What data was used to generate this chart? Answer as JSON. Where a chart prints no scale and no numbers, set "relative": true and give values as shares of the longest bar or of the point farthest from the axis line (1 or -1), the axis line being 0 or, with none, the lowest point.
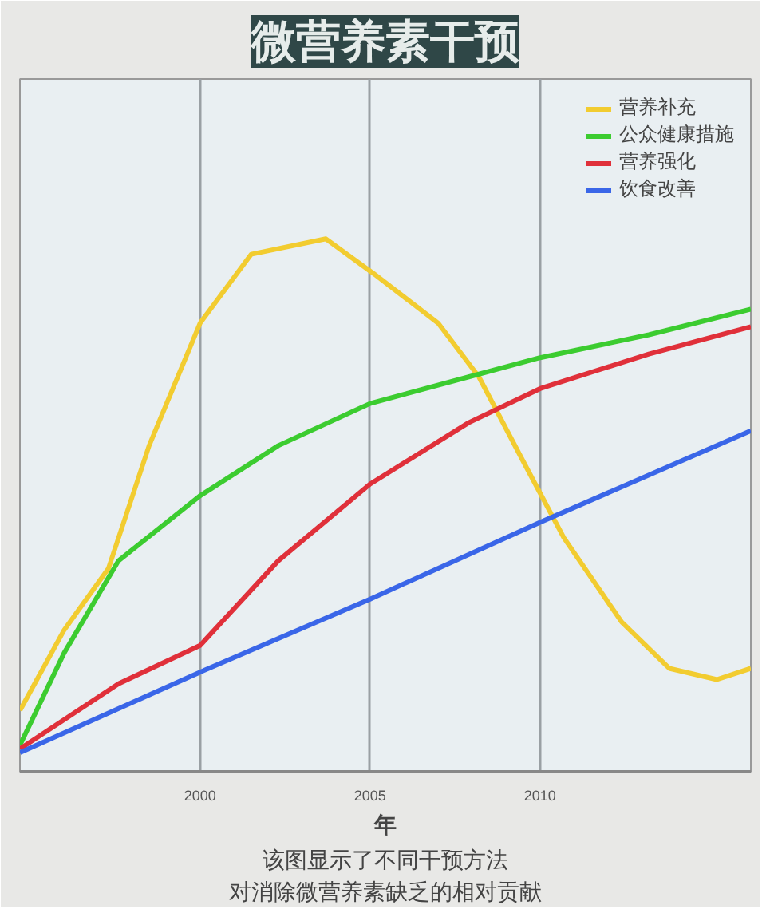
{
  "chart_data": {
    "type": "line",
    "title": "微营养素干预",
    "xlabel": "年",
    "annotations": [
      "该图显示了不同干预方法",
      "对消除微营养素缺乏的相对贡献"
    ],
    "relative": true,
    "xlim": [
      1994.7,
      2016.2
    ],
    "xticks": [
      2000,
      2005,
      2010
    ],
    "grid": "x",
    "legend": "top right",
    "line_style": "solid",
    "series": [
      {
        "name": "营养补充",
        "color": "#f2cc30",
        "x": [
          1994.7,
          1996.0,
          1997.3,
          1998.5,
          2000,
          2001.5,
          2003.7,
          2005.1,
          2007.0,
          2008.2,
          2009.5,
          2010.7,
          2012.4,
          2013.8,
          2015.2,
          2016.2
        ],
        "values": [
          0.115,
          0.266,
          0.381,
          0.612,
          0.842,
          0.971,
          1.0,
          0.935,
          0.842,
          0.741,
          0.583,
          0.439,
          0.281,
          0.194,
          0.173,
          0.194
        ]
      },
      {
        "name": "公众健康措施",
        "color": "#3ccc30",
        "x": [
          1994.7,
          1996.0,
          1997.6,
          2000,
          2002.3,
          2005,
          2007.9,
          2010,
          2013.2,
          2016.2
        ],
        "values": [
          0.05,
          0.223,
          0.396,
          0.518,
          0.612,
          0.691,
          0.741,
          0.777,
          0.82,
          0.868
        ]
      },
      {
        "name": "营养强化",
        "color": "#e0303a",
        "x": [
          1994.7,
          1997.6,
          2000,
          2002.3,
          2005,
          2007.9,
          2010,
          2013.2,
          2016.2
        ],
        "values": [
          0.043,
          0.165,
          0.237,
          0.396,
          0.54,
          0.655,
          0.719,
          0.784,
          0.835
        ]
      },
      {
        "name": "饮食改善",
        "color": "#3a66e8",
        "x": [
          1994.7,
          2000,
          2005,
          2010,
          2016.2
        ],
        "values": [
          0.036,
          0.187,
          0.324,
          0.468,
          0.64
        ]
      }
    ]
  }
}
